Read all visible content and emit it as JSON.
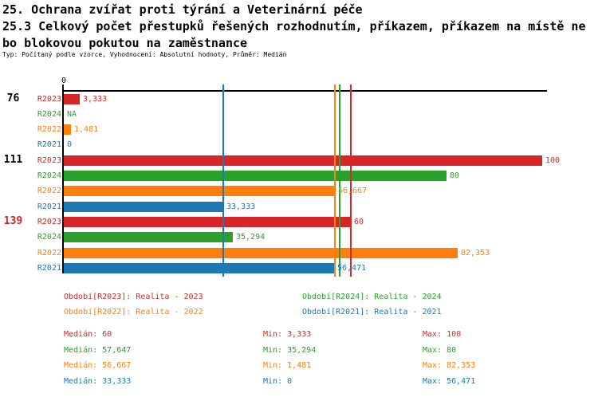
{
  "title": {
    "line1": "25. Ochrana zvířat proti týrání a Veterinární péče",
    "line2": "25.3 Celkový počet přestupků řešených rozhodnutím, příkazem, příkazem na místě ne",
    "line3": "bo blokovou pokutou na zaměstnance",
    "meta": "Typ: Počítaný podle vzorce, Vyhodnocení: Absolutní hodnoty, Průměr: Medián"
  },
  "palette": {
    "R2023": "#d62728",
    "R2024": "#2ca02c",
    "R2022": "#ff7f0e",
    "R2021": "#1f77b4",
    "axis": "#000000",
    "group_label_default": "#000000",
    "group_label_highlight": "#d62728"
  },
  "chart_data": {
    "type": "bar",
    "orientation": "horizontal",
    "value_axis": {
      "min": 0,
      "max": 100,
      "tick_labels": [
        "0"
      ],
      "grid": false
    },
    "series_order": [
      "R2023",
      "R2024",
      "R2022",
      "R2021"
    ],
    "series_names": {
      "R2023": "Realita - 2023",
      "R2024": "Realita - 2024",
      "R2022": "Realita - 2022",
      "R2021": "Realita - 2021"
    },
    "groups": [
      {
        "label": "76",
        "label_color": "#000000",
        "values": {
          "R2023": 3.333,
          "R2024": null,
          "R2022": 1.481,
          "R2021": 0
        },
        "value_labels": {
          "R2023": "3,333",
          "R2024": "NA",
          "R2022": "1,481",
          "R2021": "0"
        }
      },
      {
        "label": "111",
        "label_color": "#000000",
        "values": {
          "R2023": 100,
          "R2024": 80,
          "R2022": 56.667,
          "R2021": 33.333
        },
        "value_labels": {
          "R2023": "100",
          "R2024": "80",
          "R2022": "56,667",
          "R2021": "33,333"
        }
      },
      {
        "label": "139",
        "label_color": "#d62728",
        "values": {
          "R2023": 60,
          "R2024": 35.294,
          "R2022": 82.353,
          "R2021": 56.471
        },
        "value_labels": {
          "R2023": "60",
          "R2024": "35,294",
          "R2022": "82,353",
          "R2021": "56,471"
        }
      }
    ],
    "reference_lines": [
      {
        "series": "R2021",
        "value": 33.333
      },
      {
        "series": "R2022",
        "value": 56.667
      },
      {
        "series": "R2024",
        "value": 57.647
      },
      {
        "series": "R2023",
        "value": 60
      }
    ],
    "statistics": {
      "R2023": {
        "median": 60,
        "min": 3.333,
        "max": 100
      },
      "R2024": {
        "median": 57.647,
        "min": 35.294,
        "max": 80
      },
      "R2022": {
        "median": 56.667,
        "min": 1.481,
        "max": 82.353
      },
      "R2021": {
        "median": 33.333,
        "min": 0,
        "max": 56.471
      }
    }
  },
  "legend": {
    "items": [
      {
        "series": "R2023",
        "label": "Období[R2023]: Realita - 2023"
      },
      {
        "series": "R2024",
        "label": "Období[R2024]: Realita - 2024"
      },
      {
        "series": "R2022",
        "label": "Období[R2022]: Realita - 2022"
      },
      {
        "series": "R2021",
        "label": "Období[R2021]: Realita - 2021"
      }
    ]
  },
  "stats": {
    "rows": [
      {
        "series": "R2023",
        "median": "Medián: 60",
        "min": "Min: 3,333",
        "max": "Max: 100"
      },
      {
        "series": "R2024",
        "median": "Medián: 57,647",
        "min": "Min: 35,294",
        "max": "Max: 80"
      },
      {
        "series": "R2022",
        "median": "Medián: 56,667",
        "min": "Min: 1,481",
        "max": "Max: 82,353"
      },
      {
        "series": "R2021",
        "median": "Medián: 33,333",
        "min": "Min: 0",
        "max": "Max: 56,471"
      }
    ]
  }
}
